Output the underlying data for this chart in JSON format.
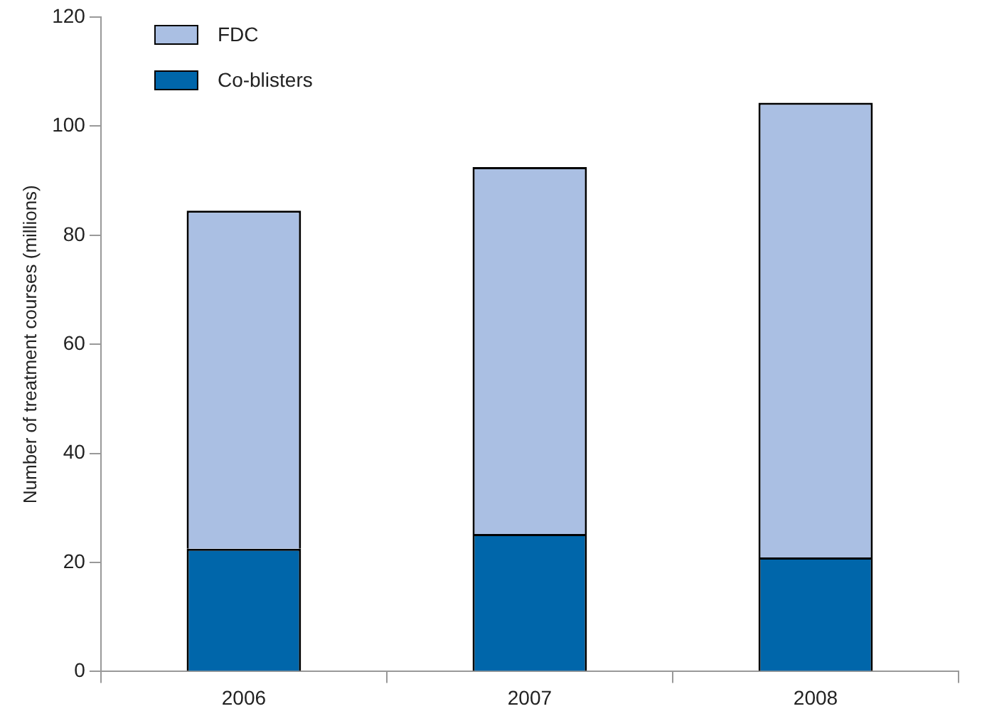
{
  "chart_data": {
    "type": "bar",
    "ylabel": "Number of treatment courses (millions)",
    "categories": [
      "2006",
      "2007",
      "2008"
    ],
    "stacked": true,
    "legend": "top left",
    "grid": false,
    "ylim": [
      0,
      120
    ],
    "yticks": [
      0,
      20,
      40,
      60,
      80,
      100,
      120
    ],
    "series": [
      {
        "name": "Co-blisters",
        "color": "#0066aa",
        "values": [
          22.5,
          25.2,
          20.9
        ]
      },
      {
        "name": "FDC",
        "color": "#aabfe3",
        "values": [
          62.0,
          67.3,
          83.4
        ]
      }
    ]
  }
}
